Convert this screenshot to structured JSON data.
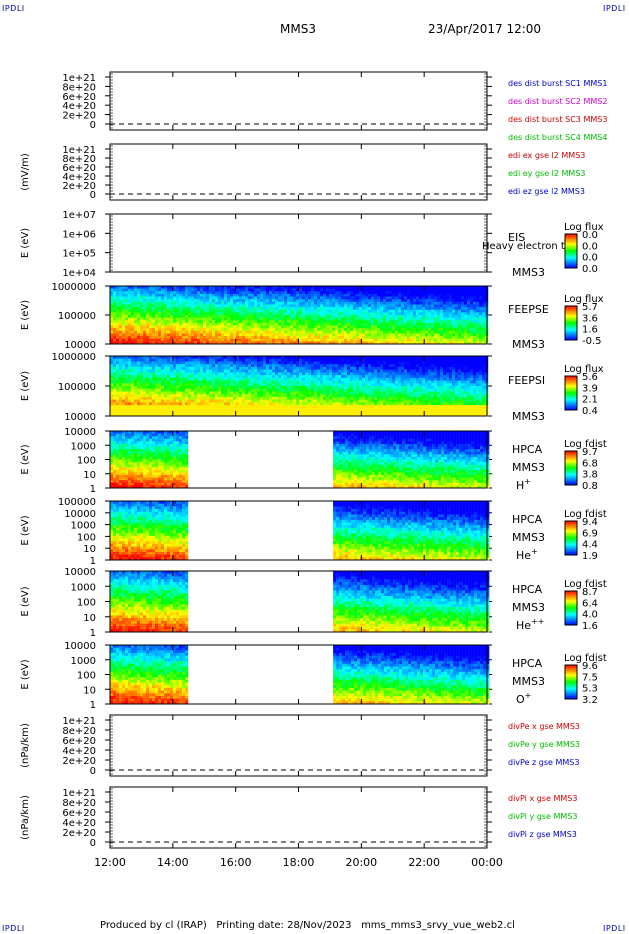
{
  "header": {
    "corner": "IPDLI",
    "spacecraft": "MMS3",
    "date": "23/Apr/2017 12:00"
  },
  "footer": {
    "producer": "Produced by cl (IRAP)",
    "printing": "Printing date: 28/Nov/2023",
    "script": "mms_mms3_srvy_vue_web2.cl"
  },
  "chart_data": [
    {
      "type": "line",
      "id": "p1",
      "ylabel": "",
      "ytick_labels": [
        "1e+21",
        "8e+20",
        "6e+20",
        "4e+20",
        "2e+20",
        "0"
      ],
      "legend": [
        {
          "text": "des dist burst SC1 MMS1",
          "color": "#0000cc"
        },
        {
          "text": "des dist burst SC2 MMS2",
          "color": "#cc00cc"
        },
        {
          "text": "des dist burst SC3 MMS3",
          "color": "#cc0000"
        },
        {
          "text": "des dist burst SC4 MMS4",
          "color": "#00bb00"
        }
      ],
      "zero_line": "dashed"
    },
    {
      "type": "line",
      "id": "p2",
      "ylabel": "(mV/m)",
      "ytick_labels": [
        "1e+21",
        "8e+20",
        "6e+20",
        "4e+20",
        "2e+20",
        "0"
      ],
      "legend": [
        {
          "text": "edi ex gse l2 MMS3",
          "color": "#cc0000"
        },
        {
          "text": "edi ey gse l2 MMS3",
          "color": "#00bb00"
        },
        {
          "text": "edi ez gse l2 MMS3",
          "color": "#0000cc"
        }
      ],
      "zero_line": "dashed"
    },
    {
      "type": "heatmap",
      "id": "p3",
      "ylabel": "E (eV)",
      "ytick_labels": [
        "1e+07",
        "1e+06",
        "1e+05",
        "1e+04"
      ],
      "instrument": "EIS",
      "spacecraft": "MMS3",
      "overlay_text": "Heavy electron to",
      "colorbar_label": "Log flux",
      "colorbar_ticks": [
        "0.0",
        "0.0",
        "0.0",
        "0.0"
      ],
      "coverage": []
    },
    {
      "type": "heatmap",
      "id": "p4",
      "ylabel": "E (eV)",
      "ytick_labels": [
        "1000000",
        "100000",
        "10000"
      ],
      "instrument": "FEEPSE",
      "spacecraft": "MMS3",
      "colorbar_label": "Log flux",
      "colorbar_ticks": [
        "5.7",
        "3.6",
        "1.6",
        "-0.5"
      ],
      "coverage": [
        [
          12.0,
          24.0
        ]
      ]
    },
    {
      "type": "heatmap",
      "id": "p5",
      "ylabel": "E (eV)",
      "ytick_labels": [
        "1000000",
        "100000",
        "10000"
      ],
      "instrument": "FEEPSI",
      "spacecraft": "MMS3",
      "colorbar_label": "Log flux",
      "colorbar_ticks": [
        "5.6",
        "3.9",
        "2.1",
        "0.4"
      ],
      "coverage": [
        [
          12.0,
          24.0
        ]
      ]
    },
    {
      "type": "heatmap",
      "id": "p6",
      "ylabel": "E (eV)",
      "ytick_labels": [
        "10000",
        "1000",
        "100",
        "10",
        "1"
      ],
      "instrument": "HPCA",
      "spacecraft": "MMS3",
      "species": "H",
      "charge": "+",
      "colorbar_label": "Log fdist",
      "colorbar_ticks": [
        "9.7",
        "6.8",
        "3.8",
        "0.8"
      ],
      "coverage": [
        [
          12.0,
          14.45
        ],
        [
          19.1,
          24.0
        ]
      ]
    },
    {
      "type": "heatmap",
      "id": "p7",
      "ylabel": "E (eV)",
      "ytick_labels": [
        "100000",
        "10000",
        "1000",
        "100",
        "10",
        "1"
      ],
      "instrument": "HPCA",
      "spacecraft": "MMS3",
      "species": "He",
      "charge": "+",
      "colorbar_label": "Log fdist",
      "colorbar_ticks": [
        "9.4",
        "6.9",
        "4.4",
        "1.9"
      ],
      "coverage": [
        [
          12.0,
          14.45
        ],
        [
          19.1,
          24.0
        ]
      ]
    },
    {
      "type": "heatmap",
      "id": "p8",
      "ylabel": "E (eV)",
      "ytick_labels": [
        "10000",
        "1000",
        "100",
        "10",
        "1"
      ],
      "instrument": "HPCA",
      "spacecraft": "MMS3",
      "species": "He",
      "charge": "++",
      "colorbar_label": "Log fdist",
      "colorbar_ticks": [
        "8.7",
        "6.4",
        "4.0",
        "1.6"
      ],
      "coverage": [
        [
          12.0,
          14.45
        ],
        [
          19.1,
          24.0
        ]
      ]
    },
    {
      "type": "heatmap",
      "id": "p9",
      "ylabel": "E (eV)",
      "ytick_labels": [
        "10000",
        "1000",
        "100",
        "10",
        "1"
      ],
      "instrument": "HPCA",
      "spacecraft": "MMS3",
      "species": "O",
      "charge": "+",
      "colorbar_label": "Log fdist",
      "colorbar_ticks": [
        "9.6",
        "7.5",
        "5.3",
        "3.2"
      ],
      "coverage": [
        [
          12.0,
          14.45
        ],
        [
          19.1,
          24.0
        ]
      ]
    },
    {
      "type": "line",
      "id": "p10",
      "ylabel": "(nPa/km)",
      "ytick_labels": [
        "1e+21",
        "8e+20",
        "6e+20",
        "4e+20",
        "2e+20",
        "0"
      ],
      "legend": [
        {
          "text": "divPe x gse MMS3",
          "color": "#cc0000"
        },
        {
          "text": "divPe y gse MMS3",
          "color": "#00bb00"
        },
        {
          "text": "divPe z gse MMS3",
          "color": "#0000cc"
        }
      ],
      "zero_line": "dashed"
    },
    {
      "type": "line",
      "id": "p11",
      "ylabel": "(nPa/km)",
      "ytick_labels": [
        "1e+21",
        "8e+20",
        "6e+20",
        "4e+20",
        "2e+20",
        "0"
      ],
      "legend": [
        {
          "text": "divPi x gse MMS3",
          "color": "#cc0000"
        },
        {
          "text": "divPi y gse MMS3",
          "color": "#00bb00"
        },
        {
          "text": "divPi z gse MMS3",
          "color": "#0000cc"
        }
      ],
      "zero_line": "dashed"
    }
  ],
  "x_axis": {
    "range": [
      12,
      24
    ],
    "ticks": [
      12,
      14,
      16,
      18,
      20,
      22,
      24
    ],
    "tick_labels": [
      "12:00",
      "14:00",
      "16:00",
      "18:00",
      "20:00",
      "22:00",
      "00:00"
    ]
  }
}
